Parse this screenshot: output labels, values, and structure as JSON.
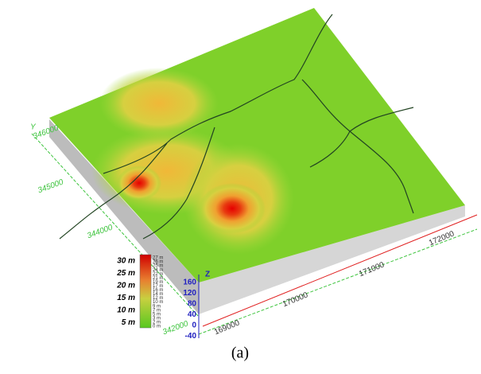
{
  "figure": {
    "y_axis": {
      "title": "Y",
      "labels": [
        "346000",
        "345000",
        "344000",
        "342000"
      ]
    },
    "x_axis": {
      "labels": [
        "169000",
        "170000",
        "171000",
        "172000"
      ]
    },
    "z_axis": {
      "title": "Z",
      "labels": [
        "160",
        "120",
        "80",
        "40",
        "0",
        "-40"
      ]
    },
    "legend": {
      "major": [
        "30 m",
        "25 m",
        "20 m",
        "15 m",
        "10 m",
        "5 m"
      ],
      "minor": [
        "27 m",
        "26 m",
        "25 m",
        "24 m",
        "22 m",
        "21 m",
        "19 m",
        "17 m",
        "16 m",
        "14 m",
        "12 m",
        "10 m",
        "9 m",
        "7 m",
        "5 m",
        "3 m",
        "2 m",
        "0 m"
      ]
    },
    "caption": "(a)"
  }
}
